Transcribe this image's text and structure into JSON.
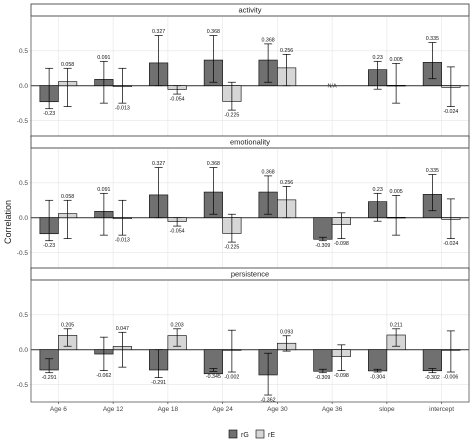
{
  "chart_data": {
    "type": "bar",
    "ylabel": "Correlation",
    "xlabel": "",
    "categories": [
      "Age 6",
      "Age 12",
      "Age 18",
      "Age 24",
      "Age 30",
      "Age 36",
      "slope",
      "intercept"
    ],
    "yticks": [
      -0.5,
      0.0,
      0.5
    ],
    "ylim": [
      -0.75,
      1.0
    ],
    "legend": {
      "placement": "bottom",
      "entries": [
        "rG",
        "rE"
      ]
    },
    "colors": {
      "rG": "#707070",
      "rE": "#d6d6d6"
    },
    "na_text": "N/A",
    "panels": [
      {
        "title": "activity",
        "series": [
          {
            "name": "rG",
            "values": [
              -0.23,
              0.091,
              0.327,
              0.368,
              0.368,
              null,
              0.23,
              0.335
            ],
            "labels": [
              "-0.23",
              "0.091",
              "0.327",
              "0.368",
              "0.368",
              "",
              "0.23",
              "0.335"
            ],
            "lower": [
              -0.33,
              -0.25,
              0.0,
              0.05,
              0.05,
              null,
              -0.05,
              0.1
            ],
            "upper": [
              0.25,
              0.35,
              0.72,
              0.72,
              0.6,
              null,
              0.35,
              0.62
            ]
          },
          {
            "name": "rE",
            "values": [
              0.058,
              -0.013,
              -0.054,
              -0.225,
              0.256,
              null,
              0.005,
              -0.024
            ],
            "labels": [
              "0.058",
              "-0.013",
              "-0.054",
              "-0.225",
              "0.256",
              "",
              "0.005",
              "-0.024"
            ],
            "lower": [
              -0.3,
              -0.25,
              -0.12,
              -0.35,
              0.0,
              null,
              -0.25,
              -0.3
            ],
            "upper": [
              0.25,
              0.25,
              0.0,
              0.05,
              0.45,
              null,
              0.32,
              0.27
            ]
          }
        ]
      },
      {
        "title": "emotionality",
        "series": [
          {
            "name": "rG",
            "values": [
              -0.23,
              0.091,
              0.327,
              0.368,
              0.368,
              -0.309,
              0.23,
              0.335
            ],
            "labels": [
              "-0.23",
              "0.091",
              "0.327",
              "0.368",
              "0.368",
              "-0.309",
              "0.23",
              "0.335"
            ],
            "lower": [
              -0.33,
              -0.25,
              0.0,
              0.05,
              0.05,
              -0.33,
              -0.05,
              0.1
            ],
            "upper": [
              0.25,
              0.35,
              0.72,
              0.72,
              0.6,
              -0.28,
              0.35,
              0.62
            ]
          },
          {
            "name": "rE",
            "values": [
              0.058,
              -0.013,
              -0.054,
              -0.225,
              0.256,
              -0.098,
              0.005,
              -0.024
            ],
            "labels": [
              "0.058",
              "-0.013",
              "-0.054",
              "-0.225",
              "0.256",
              "-0.098",
              "0.005",
              "-0.024"
            ],
            "lower": [
              -0.3,
              -0.25,
              -0.12,
              -0.35,
              0.0,
              -0.3,
              -0.25,
              -0.3
            ],
            "upper": [
              0.25,
              0.25,
              0.0,
              0.05,
              0.45,
              0.07,
              0.32,
              0.27
            ]
          }
        ]
      },
      {
        "title": "persistence",
        "series": [
          {
            "name": "rG",
            "values": [
              -0.291,
              -0.062,
              -0.291,
              -0.345,
              -0.362,
              -0.309,
              -0.304,
              -0.302
            ],
            "labels": [
              "-0.291",
              "-0.062",
              "-0.291",
              "-0.345",
              "-0.362",
              "-0.309",
              "-0.304",
              "-0.302"
            ],
            "lower": [
              -0.33,
              -0.3,
              -0.4,
              -0.31,
              -0.65,
              -0.33,
              -0.32,
              -0.33
            ],
            "upper": [
              -0.13,
              0.18,
              0.0,
              -0.27,
              -0.05,
              -0.28,
              -0.28,
              -0.27
            ]
          },
          {
            "name": "rE",
            "values": [
              0.205,
              0.047,
              0.203,
              -0.002,
              0.093,
              -0.098,
              0.211,
              -0.006
            ],
            "labels": [
              "0.205",
              "0.047",
              "0.203",
              "-0.002",
              "0.093",
              "-0.098",
              "0.211",
              "-0.006"
            ],
            "lower": [
              0.05,
              -0.25,
              0.05,
              -0.32,
              -0.02,
              -0.3,
              0.05,
              -0.32
            ],
            "upper": [
              0.3,
              0.25,
              0.3,
              0.28,
              0.2,
              0.07,
              0.3,
              0.27
            ]
          }
        ]
      }
    ]
  }
}
